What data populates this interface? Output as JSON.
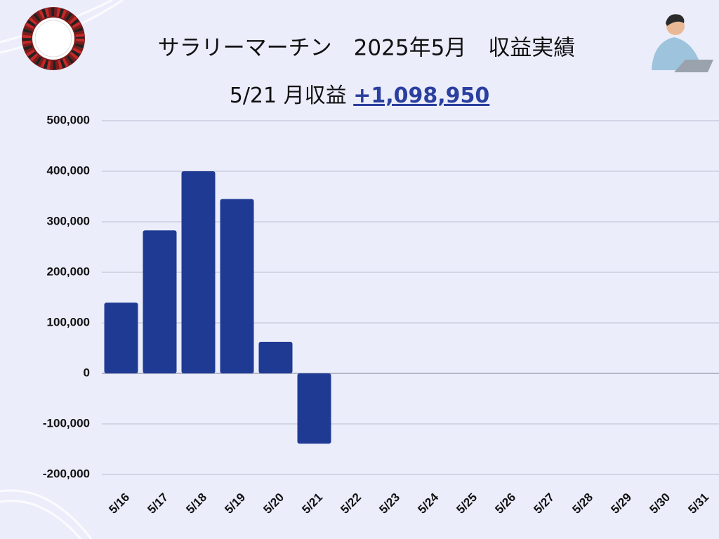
{
  "chart_data": {
    "type": "bar",
    "title": "サラリーマーチン　2025年5月　収益実績",
    "subtitle": "5/21 月収益",
    "total": "+1,098,950",
    "categories": [
      "5/16",
      "5/17",
      "5/18",
      "5/19",
      "5/20",
      "5/21",
      "5/22",
      "5/23",
      "5/24",
      "5/25",
      "5/26",
      "5/27",
      "5/28",
      "5/29",
      "5/30",
      "5/31"
    ],
    "values": [
      140000,
      283000,
      400000,
      345000,
      62500,
      -139000,
      null,
      null,
      null,
      null,
      null,
      null,
      null,
      null,
      null,
      null
    ],
    "color": "#1f3a93",
    "ylim": [
      -200000,
      500000
    ],
    "yticks": [
      {
        "value": -200000,
        "label": "-200,000"
      },
      {
        "value": -100000,
        "label": "-100,000"
      },
      0,
      {
        "value": 100000,
        "label": "100,000"
      },
      {
        "value": 200000,
        "label": "200,000"
      },
      {
        "value": 300000,
        "label": "300,000"
      },
      {
        "value": 400000,
        "label": "400,000"
      },
      {
        "value": 500000,
        "label": "500,000"
      }
    ],
    "grid": true
  }
}
